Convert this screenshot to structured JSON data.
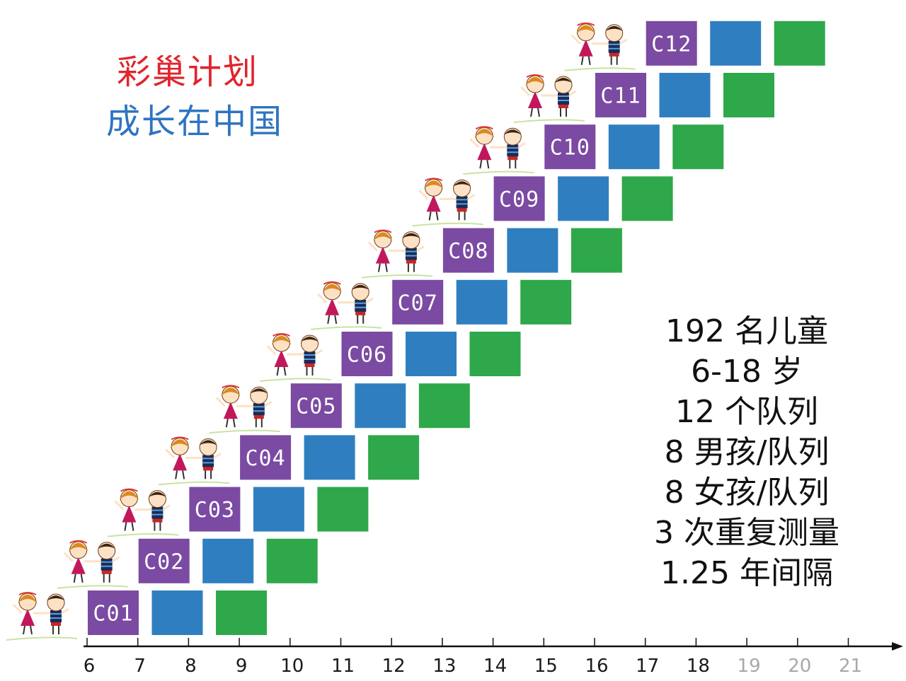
{
  "title": {
    "line1": "彩巢计划",
    "line2": "成长在中国"
  },
  "facts": [
    "192 名儿童",
    "6-18 岁",
    "12 个队列",
    "8 男孩/队列",
    "8 女孩/队列",
    "3 次重复测量",
    "1.25 年间隔"
  ],
  "cohorts": [
    "C01",
    "C02",
    "C03",
    "C04",
    "C05",
    "C06",
    "C07",
    "C08",
    "C09",
    "C10",
    "C11",
    "C12"
  ],
  "axis": {
    "ticks": [
      6,
      7,
      8,
      9,
      10,
      11,
      12,
      13,
      14,
      15,
      16,
      17,
      18,
      19,
      20,
      21
    ],
    "faded_ticks": [
      19,
      20,
      21
    ]
  },
  "colors": {
    "wave1": "#7b4aa2",
    "wave2": "#2f7fc0",
    "wave3": "#2ea84a",
    "tick_text": "#1a1a1a",
    "tick_faded": "#a8a8a8"
  },
  "figure_icon": "girl-and-boy-holding-hands"
}
